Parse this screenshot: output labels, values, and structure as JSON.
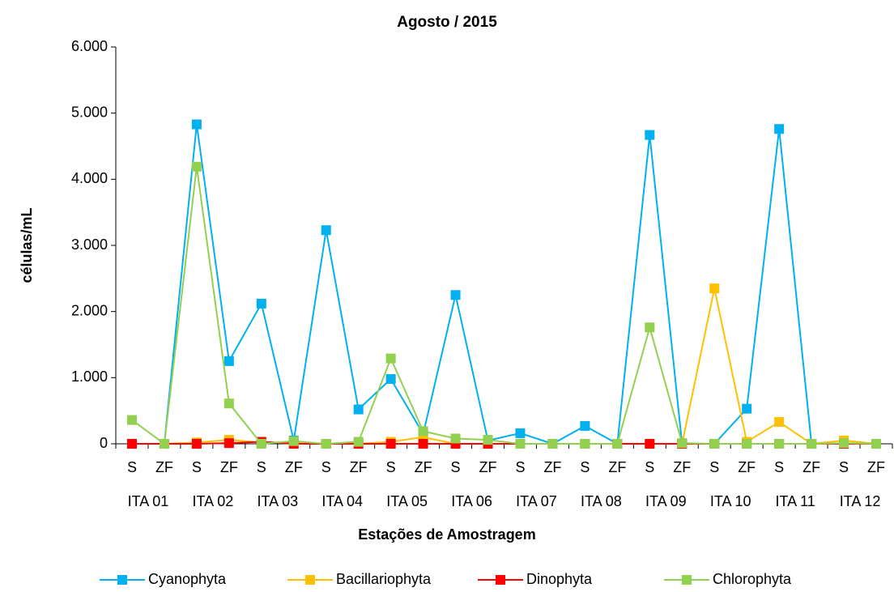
{
  "chart_data": {
    "type": "line",
    "title": "Agosto / 2015",
    "x_label": "Estações de Amostragem",
    "y_label": "células/mL",
    "categories": [
      "S",
      "ZF",
      "S",
      "ZF",
      "S",
      "ZF",
      "S",
      "ZF",
      "S",
      "ZF",
      "S",
      "ZF",
      "S",
      "ZF",
      "S",
      "ZF",
      "S",
      "ZF",
      "S",
      "ZF",
      "S",
      "ZF",
      "S",
      "ZF"
    ],
    "groups": [
      "ITA 01",
      "ITA 02",
      "ITA 03",
      "ITA 04",
      "ITA 05",
      "ITA 06",
      "ITA 07",
      "ITA 08",
      "ITA 09",
      "ITA 10",
      "ITA 11",
      "ITA 12"
    ],
    "ylim": [
      0,
      6000
    ],
    "yticks": [
      0,
      {
        "value": 1000,
        "label": "1.000"
      },
      {
        "value": 2000,
        "label": "2.000"
      },
      {
        "value": 3000,
        "label": "3.000"
      },
      {
        "value": 4000,
        "label": "4.000"
      },
      {
        "value": 5000,
        "label": "5.000"
      },
      {
        "value": 6000,
        "label": "6.000"
      }
    ],
    "legend": "bottom",
    "series": [
      {
        "name": "Cyanophyta",
        "color": "#00b0f0",
        "values": [
          0,
          0,
          4830,
          1250,
          2120,
          50,
          3230,
          520,
          980,
          150,
          2250,
          50,
          160,
          0,
          270,
          0,
          4670,
          0,
          0,
          530,
          4760,
          0,
          0,
          0
        ]
      },
      {
        "name": "Bacillariophyta",
        "color": "#ffc000",
        "values": [
          0,
          0,
          20,
          60,
          20,
          20,
          0,
          0,
          30,
          100,
          0,
          0,
          0,
          0,
          0,
          0,
          0,
          0,
          2350,
          30,
          330,
          0,
          50,
          0
        ]
      },
      {
        "name": "Dinophyta",
        "color": "#ff0000",
        "values": [
          0,
          0,
          0,
          10,
          30,
          0,
          0,
          0,
          0,
          0,
          0,
          0,
          0,
          0,
          0,
          0,
          0,
          0,
          0,
          0,
          0,
          0,
          0,
          0
        ]
      },
      {
        "name": "Chlorophyta",
        "color": "#92d050",
        "values": [
          360,
          0,
          4190,
          610,
          0,
          40,
          0,
          30,
          1290,
          190,
          80,
          60,
          0,
          0,
          0,
          0,
          1760,
          10,
          0,
          0,
          0,
          0,
          10,
          0
        ]
      }
    ]
  }
}
